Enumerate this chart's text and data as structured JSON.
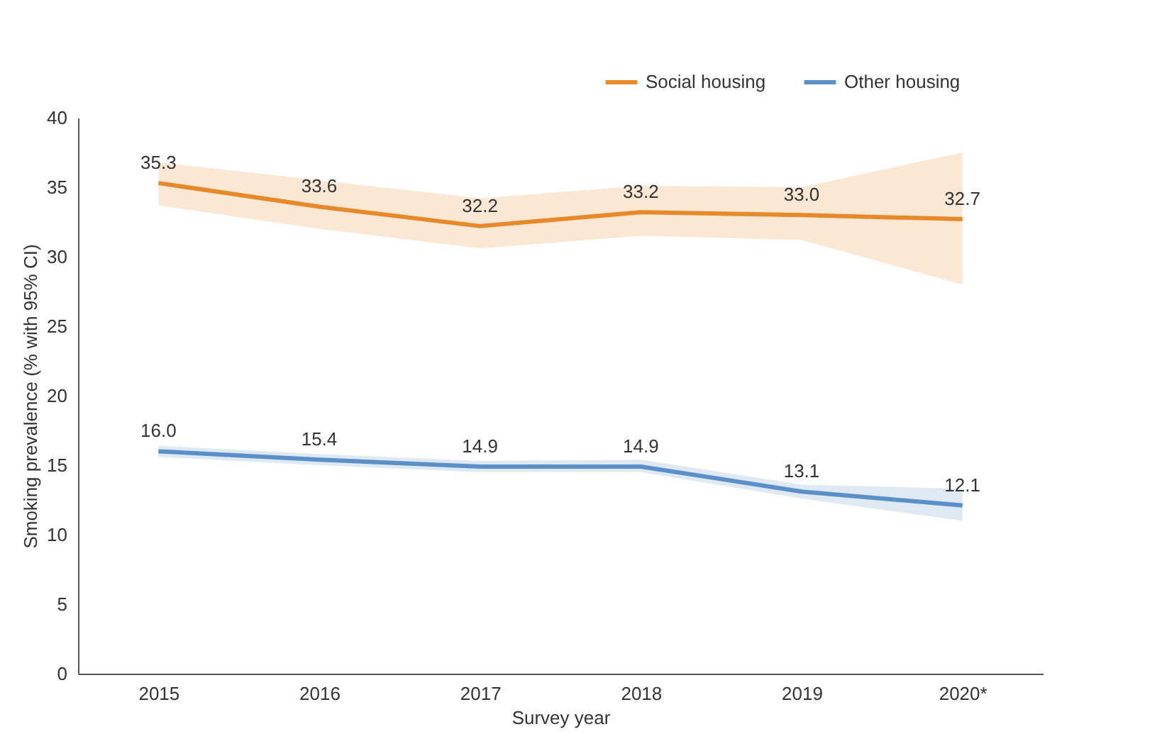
{
  "chart_data": {
    "type": "line",
    "xlabel": "Survey year",
    "ylabel": "Smoking prevalence (% with 95% CI)",
    "categories": [
      "2015",
      "2016",
      "2017",
      "2018",
      "2019",
      "2020*"
    ],
    "series": [
      {
        "name": "Social housing",
        "color": "#e8892a",
        "values": [
          35.3,
          33.6,
          32.2,
          33.2,
          33.0,
          32.7
        ],
        "value_labels": [
          "35.3",
          "33.6",
          "32.2",
          "33.2",
          "33.0",
          "32.7"
        ],
        "lower": [
          33.7,
          32.0,
          30.6,
          31.5,
          31.2,
          28.0
        ],
        "upper": [
          36.8,
          35.5,
          34.2,
          35.1,
          35.0,
          37.5
        ]
      },
      {
        "name": "Other housing",
        "color": "#5b8fc7",
        "values": [
          16.0,
          15.4,
          14.9,
          14.9,
          13.1,
          12.1
        ],
        "value_labels": [
          "16.0",
          "15.4",
          "14.9",
          "14.9",
          "13.1",
          "12.1"
        ],
        "lower": [
          15.6,
          15.0,
          14.5,
          14.5,
          12.6,
          11.0
        ],
        "upper": [
          16.4,
          15.8,
          15.3,
          15.4,
          13.6,
          13.3
        ]
      }
    ],
    "ylim": [
      0,
      40
    ],
    "yticks": [
      0,
      5,
      10,
      15,
      20,
      25,
      30,
      35,
      40
    ],
    "grid": false,
    "legend": "top right",
    "marker": "none",
    "line_style": "solid"
  }
}
